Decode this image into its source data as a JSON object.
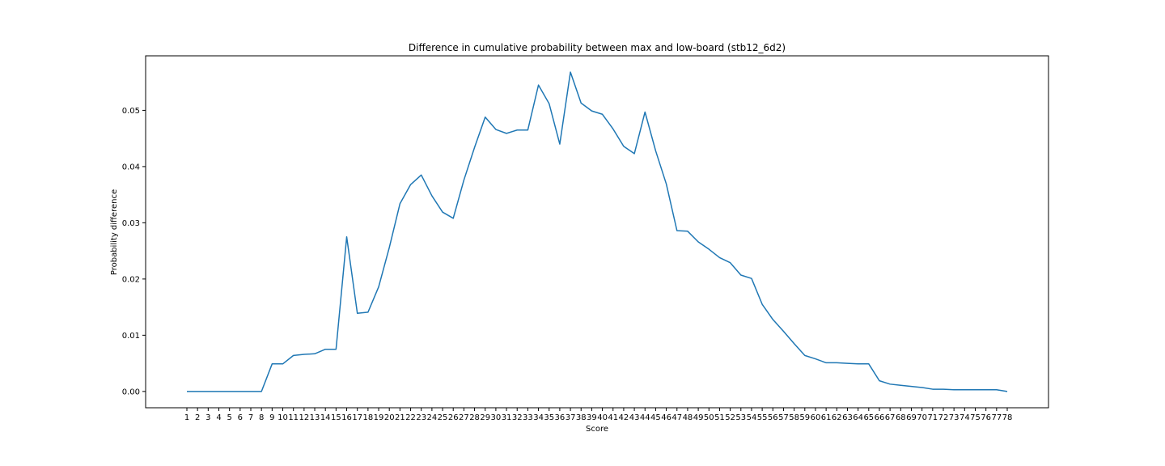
{
  "chart_data": {
    "type": "line",
    "title": "Difference in cumulative probability between max and low-board (stb12_6d2)",
    "xlabel": "Score",
    "ylabel": "Probability difference",
    "ylim": [
      -0.0029,
      0.0597
    ],
    "yticks": [
      "0.00",
      "0.01",
      "0.02",
      "0.03",
      "0.04",
      "0.05"
    ],
    "ytick_values": [
      0,
      0.01,
      0.02,
      0.03,
      0.04,
      0.05
    ],
    "grid": false,
    "legend": "none",
    "colors": {
      "line": "#1f77b4"
    },
    "x": [
      1,
      2,
      3,
      4,
      5,
      6,
      7,
      8,
      9,
      10,
      11,
      12,
      13,
      14,
      15,
      16,
      17,
      18,
      19,
      20,
      21,
      22,
      23,
      24,
      25,
      26,
      27,
      28,
      29,
      30,
      31,
      32,
      33,
      34,
      35,
      36,
      37,
      38,
      39,
      40,
      41,
      42,
      43,
      44,
      45,
      46,
      47,
      48,
      49,
      50,
      51,
      52,
      53,
      54,
      55,
      56,
      57,
      58,
      59,
      60,
      61,
      62,
      63,
      64,
      65,
      66,
      67,
      68,
      69,
      70,
      71,
      72,
      73,
      74,
      75,
      76,
      77,
      78
    ],
    "values": [
      0,
      0,
      0,
      0,
      0,
      0,
      0,
      0,
      0.0049,
      0.0049,
      0.0064,
      0.0066,
      0.0067,
      0.0075,
      0.0075,
      0.0275,
      0.0139,
      0.0141,
      0.0186,
      0.0256,
      0.0334,
      0.0368,
      0.0385,
      0.0348,
      0.0319,
      0.0308,
      0.0376,
      0.0434,
      0.0488,
      0.0466,
      0.0459,
      0.0465,
      0.0465,
      0.0545,
      0.0512,
      0.044,
      0.0568,
      0.0513,
      0.0499,
      0.0493,
      0.0467,
      0.0436,
      0.0423,
      0.0497,
      0.0428,
      0.0369,
      0.0286,
      0.0285,
      0.0266,
      0.0253,
      0.0238,
      0.0229,
      0.0207,
      0.0201,
      0.0155,
      0.0128,
      0.0107,
      0.0085,
      0.0064,
      0.0058,
      0.0051,
      0.0051,
      0.005,
      0.0049,
      0.0049,
      0.0019,
      0.0013,
      0.0011,
      0.0009,
      0.0007,
      0.0004,
      0.0004,
      0.0003,
      0.0003,
      0.0003,
      0.0003,
      0.0003,
      0
    ]
  }
}
